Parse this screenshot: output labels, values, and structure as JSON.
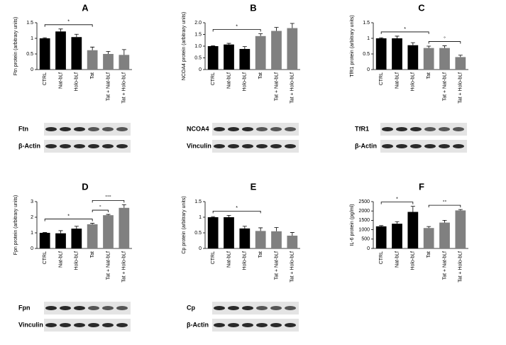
{
  "chart_data": [
    {
      "type": "bar",
      "panel": "A",
      "y_label": "Ftn protein (arbitrary units)",
      "categories": [
        "CTRL",
        "Nat-bLf",
        "Holo-bLf",
        "Tat",
        "Tat + Nat-bLf",
        "Tat + Holo-bLf"
      ],
      "values": [
        1.0,
        1.22,
        1.04,
        0.62,
        0.5,
        0.47
      ],
      "errors": [
        0.02,
        0.08,
        0.09,
        0.1,
        0.08,
        0.17
      ],
      "colors": [
        "#000000",
        "#000000",
        "#000000",
        "#808080",
        "#808080",
        "#808080"
      ],
      "ylim": [
        0,
        1.5
      ],
      "yticks": [
        0,
        0.5,
        1,
        1.5
      ],
      "annotations": [
        {
          "text": "*",
          "from": "CTRL",
          "to": "Tat"
        }
      ],
      "blots": [
        "Ftn",
        "β-Actin"
      ]
    },
    {
      "type": "bar",
      "panel": "B",
      "y_label": "NCOA4 protein (arbitrary units)",
      "categories": [
        "CTRL",
        "Nat-bLf",
        "Holo-bLf",
        "Tat",
        "Tat + Nat-bLf",
        "Tat + Holo-bLf"
      ],
      "values": [
        1.0,
        1.07,
        0.88,
        1.43,
        1.65,
        1.77
      ],
      "errors": [
        0.02,
        0.05,
        0.1,
        0.1,
        0.15,
        0.2
      ],
      "colors": [
        "#000000",
        "#000000",
        "#000000",
        "#808080",
        "#808080",
        "#808080"
      ],
      "ylim": [
        0,
        2
      ],
      "yticks": [
        0,
        0.5,
        {
          "value": 1,
          "label": "1.0"
        },
        1.5,
        {
          "value": 2,
          "label": "2.0"
        }
      ],
      "annotations": [
        {
          "text": "*",
          "from": "CTRL",
          "to": "Tat"
        }
      ],
      "blots": [
        "NCOA4",
        "Vinculin"
      ]
    },
    {
      "type": "bar",
      "panel": "C",
      "y_label": "TfR1 protein (arbitrary units)",
      "categories": [
        "CTRL",
        "Nat-bLf",
        "Holo-bLf",
        "Tat",
        "Tat + Nat-bLf",
        "Tat + Holo-bLf"
      ],
      "values": [
        1.0,
        1.0,
        0.78,
        0.69,
        0.69,
        0.4
      ],
      "errors": [
        0.02,
        0.07,
        0.08,
        0.06,
        0.07,
        0.06
      ],
      "colors": [
        "#000000",
        "#000000",
        "#000000",
        "#808080",
        "#808080",
        "#808080"
      ],
      "ylim": [
        0,
        1.5
      ],
      "yticks": [
        0,
        0.5,
        1,
        1.5
      ],
      "annotations": [
        {
          "text": "*",
          "from": "CTRL",
          "to": "Tat"
        },
        {
          "text": "°",
          "from": "Tat",
          "to": "Tat + Holo-bLf"
        }
      ],
      "blots": [
        "TfR1",
        "β-Actin"
      ]
    },
    {
      "type": "bar",
      "panel": "D",
      "y_label": "Fpn protein (arbitrary units)",
      "categories": [
        "CTRL",
        "Nat-bLf",
        "Holo-bLf",
        "Tat",
        "Tat + Nat-bLf",
        "Tat + Holo-bLf"
      ],
      "values": [
        1.0,
        0.97,
        1.27,
        1.55,
        2.13,
        2.6
      ],
      "errors": [
        0.02,
        0.17,
        0.15,
        0.06,
        0.05,
        0.2
      ],
      "colors": [
        "#000000",
        "#000000",
        "#000000",
        "#808080",
        "#808080",
        "#808080"
      ],
      "ylim": [
        0,
        3
      ],
      "yticks": [
        0,
        1,
        2,
        3
      ],
      "annotations": [
        {
          "text": "*",
          "from": "CTRL",
          "to": "Tat"
        },
        {
          "text": "°",
          "from": "Tat",
          "to": "Tat + Nat-bLf"
        },
        {
          "text": "°°°",
          "from": "Tat",
          "to": "Tat + Holo-bLf"
        }
      ],
      "blots": [
        "Fpn",
        "Vinculin"
      ]
    },
    {
      "type": "bar",
      "panel": "E",
      "y_label": "Cp protein (arbitrary units)",
      "categories": [
        "CTRL",
        "Nat-bLf",
        "Holo-bLf",
        "Tat",
        "Tat + Nat-bLf",
        "Tat + Holo-bLf"
      ],
      "values": [
        1.0,
        1.0,
        0.64,
        0.56,
        0.55,
        0.41
      ],
      "errors": [
        0.02,
        0.06,
        0.07,
        0.1,
        0.12,
        0.1
      ],
      "colors": [
        "#000000",
        "#000000",
        "#000000",
        "#808080",
        "#808080",
        "#808080"
      ],
      "ylim": [
        0,
        1.5
      ],
      "yticks": [
        0,
        0.5,
        1,
        1.5
      ],
      "annotations": [
        {
          "text": "*",
          "from": "CTRL",
          "to": "Tat"
        }
      ],
      "blots": [
        "Cp",
        "β-Actin"
      ]
    },
    {
      "type": "bar",
      "panel": "F",
      "y_label": "IL-6 protein (pg/ml)",
      "categories": [
        "CTRL",
        "Nat-bLf",
        "Holo-bLf",
        "Tat",
        "Tat + Nat-bLf",
        "Tat + Holo-bLf"
      ],
      "values": [
        1180,
        1320,
        1950,
        1090,
        1380,
        2030
      ],
      "errors": [
        40,
        110,
        300,
        80,
        120,
        50
      ],
      "colors": [
        "#000000",
        "#000000",
        "#000000",
        "#808080",
        "#808080",
        "#808080"
      ],
      "ylim": [
        0,
        2500
      ],
      "yticks": [
        0,
        500,
        1000,
        1500,
        2000,
        2500
      ],
      "annotations": [
        {
          "text": "*",
          "from": "CTRL",
          "to": "Holo-bLf"
        },
        {
          "text": "°°",
          "from": "Tat",
          "to": "Tat + Holo-bLf"
        }
      ],
      "blots": []
    }
  ]
}
